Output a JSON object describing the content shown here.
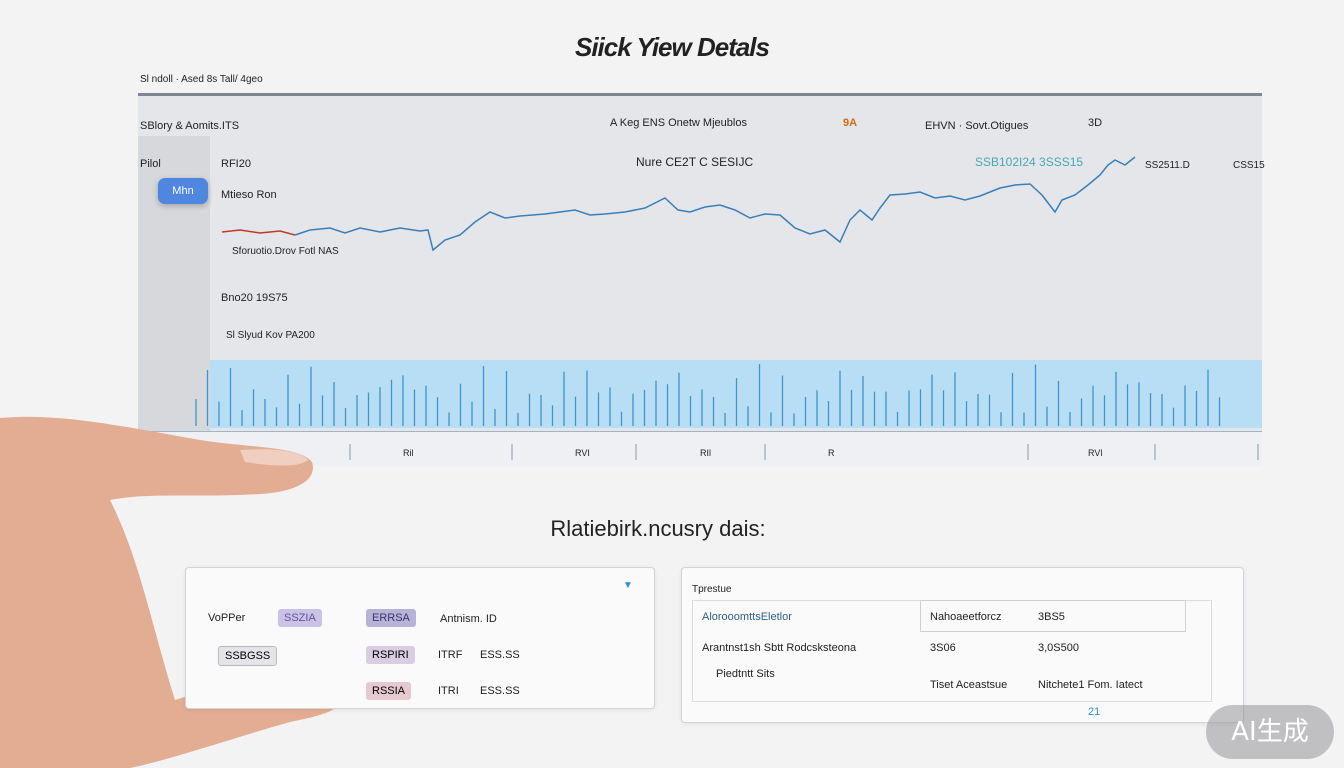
{
  "header": {
    "title": "Siick Yiew Detals",
    "breadcrumb": "Sl ndoll · Ased 8s Tall/ 4geo"
  },
  "toolbar": {
    "left": "SBlory & Aomits.ITS",
    "middle": "A Keg ENS Onetw Mjeublos",
    "tag": "9A",
    "right": "EHVN · Sovt.Otigues",
    "period": "3D"
  },
  "chart_panel": {
    "side_label": "Pilol",
    "top_label": "RFI20",
    "button": "Mhn",
    "series_label": "Mtieso Ron",
    "legend": "Sforuotio.Drov Fotl NAS",
    "level_1": "Bno20 19S75",
    "level_2": "Sl Slyud Kov PA200",
    "quote": "Nure CE2T C SESIJC",
    "quote_value": "SSB102I24 3SSS15",
    "right_value": "SS2511.D",
    "far_right": "CSS15",
    "x_labels": [
      "Ril",
      "RVI",
      "RIl",
      "R",
      "RVl"
    ]
  },
  "section_title": "Rlatiebirk.ncusry dais:",
  "left_card": {
    "label": "VoPPer",
    "chips": [
      "SSZIA",
      "ERRSA",
      "Antnism. ID",
      "SSBGSS",
      "RSPIRI",
      "ITRF",
      "ESS.SS",
      "RSSIA",
      "ITRI",
      "ESS.SS"
    ]
  },
  "right_card": {
    "title": "Tprestue",
    "rows": [
      [
        "AlorooomttsEletlor",
        "Nahoaeetforcz",
        "3BS5"
      ],
      [
        "Arantnst1sh Sbtt Rodcsksteona",
        "3S06",
        "3,0S500"
      ],
      [
        "Piedtntt Sits",
        "Tiset Aceastsue",
        "Nitchete1 Fom. Iatect"
      ]
    ],
    "page": "21"
  },
  "watermark": "AI生成"
}
